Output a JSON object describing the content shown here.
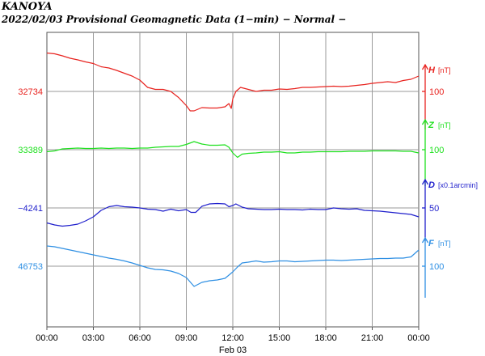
{
  "header": {
    "station": "KANOYA",
    "title": "2022/02/03  Provisional Geomagnetic Data (1−min)  − Normal −"
  },
  "chart_data": {
    "type": "line",
    "x_ticks": [
      "00:00",
      "03:00",
      "06:00",
      "09:00",
      "12:00",
      "15:00",
      "18:00",
      "21:00",
      "00:00"
    ],
    "x_range_hours": [
      0,
      24
    ],
    "date_label": "Feb 03",
    "grid": true,
    "series": [
      {
        "name": "H",
        "unit": "[nT]",
        "color": "#e8231f",
        "left_label": "32734",
        "right_tick": "100",
        "points": [
          [
            0,
            -95
          ],
          [
            0.5,
            -93
          ],
          [
            1,
            -88
          ],
          [
            1.5,
            -82
          ],
          [
            2,
            -78
          ],
          [
            2.5,
            -73
          ],
          [
            3,
            -69
          ],
          [
            3.5,
            -61
          ],
          [
            4,
            -58
          ],
          [
            4.5,
            -52
          ],
          [
            5,
            -45
          ],
          [
            5.5,
            -38
          ],
          [
            6,
            -28
          ],
          [
            6.5,
            -10
          ],
          [
            7,
            -5
          ],
          [
            7.5,
            -5
          ],
          [
            8,
            0
          ],
          [
            8.5,
            15
          ],
          [
            9,
            35
          ],
          [
            9.25,
            48
          ],
          [
            9.5,
            48
          ],
          [
            10,
            40
          ],
          [
            10.5,
            41
          ],
          [
            11,
            41
          ],
          [
            11.5,
            38
          ],
          [
            11.75,
            30
          ],
          [
            11.9,
            42
          ],
          [
            12,
            18
          ],
          [
            12.2,
            0
          ],
          [
            12.5,
            -10
          ],
          [
            13,
            -5
          ],
          [
            13.5,
            0
          ],
          [
            14,
            -3
          ],
          [
            14.5,
            -3
          ],
          [
            15,
            -6
          ],
          [
            15.5,
            -5
          ],
          [
            16,
            -7
          ],
          [
            16.5,
            -10
          ],
          [
            17,
            -10
          ],
          [
            17.5,
            -11
          ],
          [
            18,
            -12
          ],
          [
            18.5,
            -13
          ],
          [
            19,
            -12
          ],
          [
            19.5,
            -13
          ],
          [
            20,
            -15
          ],
          [
            20.5,
            -17
          ],
          [
            21,
            -20
          ],
          [
            21.5,
            -22
          ],
          [
            22,
            -24
          ],
          [
            22.5,
            -22
          ],
          [
            23,
            -27
          ],
          [
            23.5,
            -30
          ],
          [
            24,
            -38
          ]
        ]
      },
      {
        "name": "Z",
        "unit": "[nT]",
        "color": "#1ee01e",
        "left_label": "33389",
        "right_tick": "100",
        "points": [
          [
            0,
            5
          ],
          [
            0.5,
            3
          ],
          [
            1,
            -2
          ],
          [
            1.5,
            -3
          ],
          [
            2,
            -4
          ],
          [
            2.5,
            -3
          ],
          [
            3,
            -3
          ],
          [
            3.5,
            -4
          ],
          [
            4,
            -3
          ],
          [
            4.5,
            -4
          ],
          [
            5,
            -4
          ],
          [
            5.5,
            -3
          ],
          [
            6,
            -4
          ],
          [
            6.5,
            -4
          ],
          [
            7,
            -6
          ],
          [
            7.5,
            -7
          ],
          [
            8,
            -8
          ],
          [
            8.5,
            -8
          ],
          [
            9,
            -13
          ],
          [
            9.5,
            -20
          ],
          [
            10,
            -14
          ],
          [
            10.5,
            -11
          ],
          [
            11,
            -11
          ],
          [
            11.5,
            -12
          ],
          [
            11.75,
            -6
          ],
          [
            12,
            8
          ],
          [
            12.3,
            19
          ],
          [
            12.6,
            11
          ],
          [
            13,
            9
          ],
          [
            13.5,
            8
          ],
          [
            14,
            6
          ],
          [
            14.5,
            6
          ],
          [
            15,
            5
          ],
          [
            15.5,
            8
          ],
          [
            16,
            8
          ],
          [
            16.5,
            6
          ],
          [
            17,
            6
          ],
          [
            17.5,
            5
          ],
          [
            18,
            5
          ],
          [
            18.5,
            5
          ],
          [
            19,
            5
          ],
          [
            19.5,
            4
          ],
          [
            20,
            4
          ],
          [
            20.5,
            4
          ],
          [
            21,
            3
          ],
          [
            21.5,
            3
          ],
          [
            22,
            3
          ],
          [
            22.5,
            3
          ],
          [
            23,
            4
          ],
          [
            23.5,
            4
          ],
          [
            24,
            8
          ]
        ]
      },
      {
        "name": "D",
        "unit": "[x0.1arcmin]",
        "color": "#1f1fcc",
        "left_label": "−4241",
        "right_tick": "50",
        "points": [
          [
            0,
            37
          ],
          [
            0.5,
            42
          ],
          [
            1,
            45
          ],
          [
            1.5,
            43
          ],
          [
            2,
            40
          ],
          [
            2.5,
            32
          ],
          [
            3,
            22
          ],
          [
            3.5,
            6
          ],
          [
            4,
            -3
          ],
          [
            4.5,
            -6
          ],
          [
            5,
            -3
          ],
          [
            5.5,
            -2
          ],
          [
            6,
            0
          ],
          [
            6.5,
            3
          ],
          [
            7,
            4
          ],
          [
            7.5,
            8
          ],
          [
            8,
            3
          ],
          [
            8.5,
            7
          ],
          [
            9,
            4
          ],
          [
            9.3,
            11
          ],
          [
            9.6,
            11
          ],
          [
            9.8,
            4
          ],
          [
            10,
            -4
          ],
          [
            10.5,
            -10
          ],
          [
            11,
            -11
          ],
          [
            11.5,
            -10
          ],
          [
            11.75,
            -3
          ],
          [
            12,
            -6
          ],
          [
            12.2,
            -10
          ],
          [
            12.6,
            -2
          ],
          [
            13,
            2
          ],
          [
            13.5,
            3
          ],
          [
            14,
            4
          ],
          [
            14.5,
            4
          ],
          [
            15,
            3
          ],
          [
            15.5,
            4
          ],
          [
            16,
            4
          ],
          [
            16.5,
            5
          ],
          [
            17,
            3
          ],
          [
            17.5,
            4
          ],
          [
            18,
            4
          ],
          [
            18.5,
            0
          ],
          [
            19,
            2
          ],
          [
            19.5,
            3
          ],
          [
            20,
            2
          ],
          [
            20.5,
            6
          ],
          [
            21,
            7
          ],
          [
            21.5,
            8
          ],
          [
            22,
            10
          ],
          [
            22.5,
            12
          ],
          [
            23,
            14
          ],
          [
            23.5,
            16
          ],
          [
            24,
            22
          ]
        ]
      },
      {
        "name": "F",
        "unit": "[nT]",
        "color": "#2e8fe3",
        "left_label": "46753",
        "right_tick": "100",
        "points": [
          [
            0,
            -50
          ],
          [
            0.5,
            -48
          ],
          [
            1,
            -44
          ],
          [
            1.5,
            -40
          ],
          [
            2,
            -36
          ],
          [
            2.5,
            -32
          ],
          [
            3,
            -28
          ],
          [
            3.5,
            -24
          ],
          [
            4,
            -20
          ],
          [
            4.5,
            -17
          ],
          [
            5,
            -13
          ],
          [
            5.5,
            -8
          ],
          [
            6,
            -2
          ],
          [
            6.5,
            4
          ],
          [
            7,
            8
          ],
          [
            7.5,
            9
          ],
          [
            8,
            12
          ],
          [
            8.5,
            18
          ],
          [
            9,
            28
          ],
          [
            9.5,
            50
          ],
          [
            10,
            40
          ],
          [
            10.5,
            36
          ],
          [
            11,
            34
          ],
          [
            11.5,
            30
          ],
          [
            11.75,
            22
          ],
          [
            12,
            14
          ],
          [
            12.3,
            2
          ],
          [
            12.6,
            -8
          ],
          [
            13,
            -10
          ],
          [
            13.5,
            -13
          ],
          [
            14,
            -10
          ],
          [
            14.5,
            -11
          ],
          [
            15,
            -13
          ],
          [
            15.5,
            -13
          ],
          [
            16,
            -11
          ],
          [
            16.5,
            -12
          ],
          [
            17,
            -13
          ],
          [
            17.5,
            -14
          ],
          [
            18,
            -15
          ],
          [
            18.5,
            -15
          ],
          [
            19,
            -14
          ],
          [
            19.5,
            -15
          ],
          [
            20,
            -16
          ],
          [
            20.5,
            -17
          ],
          [
            21,
            -18
          ],
          [
            21.5,
            -19
          ],
          [
            22,
            -19
          ],
          [
            22.5,
            -20
          ],
          [
            23,
            -20
          ],
          [
            23.5,
            -23
          ],
          [
            24,
            -40
          ]
        ]
      }
    ]
  }
}
